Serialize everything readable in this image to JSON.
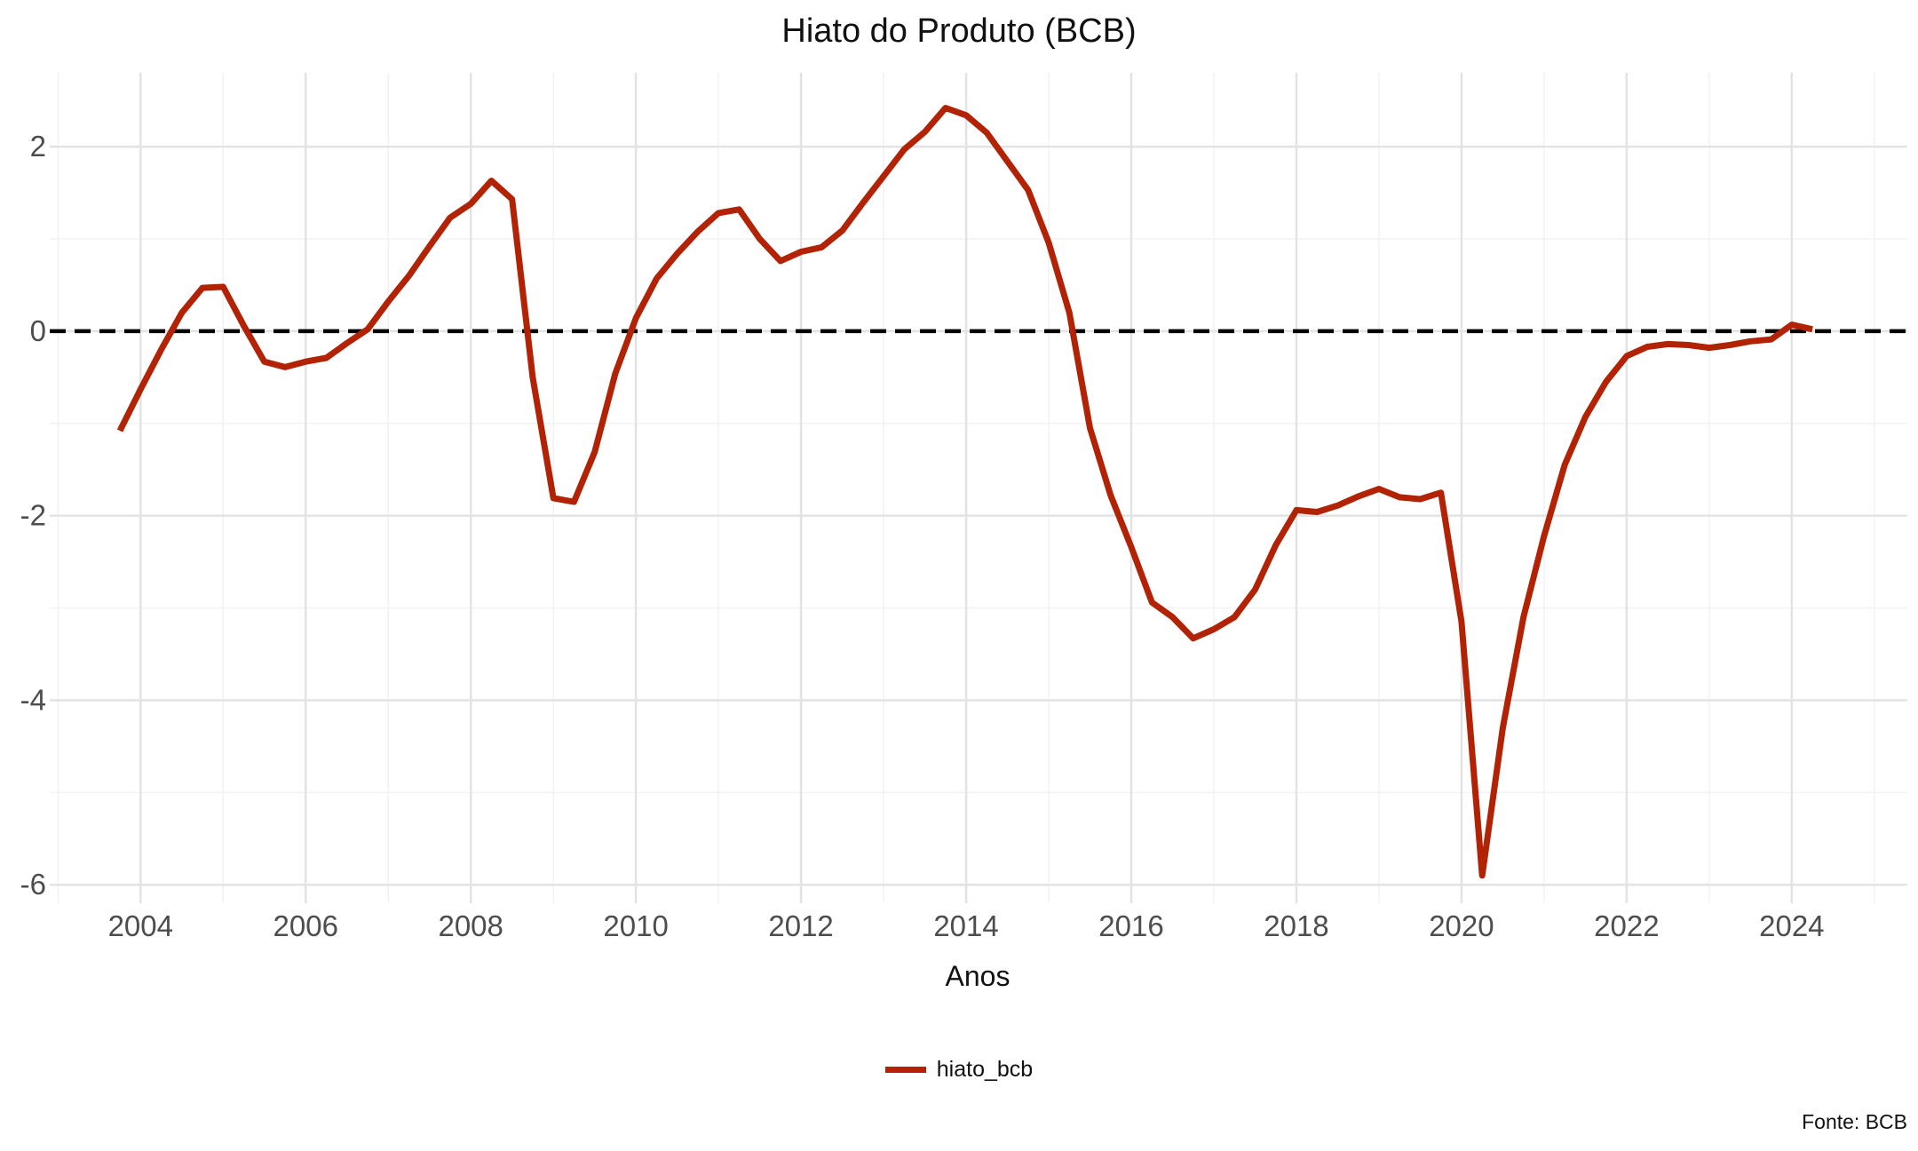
{
  "chart_data": {
    "type": "line",
    "title": "Hiato do Produto (BCB)",
    "xlabel": "Anos",
    "ylabel": "",
    "caption": "Fonte: BCB",
    "xlim": [
      2002.9,
      2025.4
    ],
    "ylim": [
      -6.2,
      2.8
    ],
    "x_ticks": [
      2004,
      2006,
      2008,
      2010,
      2012,
      2014,
      2016,
      2018,
      2020,
      2022,
      2024
    ],
    "x_tick_labels": [
      "2004",
      "2006",
      "2008",
      "2010",
      "2012",
      "2014",
      "2016",
      "2018",
      "2020",
      "2022",
      "2024"
    ],
    "y_ticks": [
      -6,
      -4,
      -2,
      0,
      2
    ],
    "y_tick_labels": [
      "-6",
      "-4",
      "-2",
      "0",
      "2"
    ],
    "grid": true,
    "legend_position": "bottom",
    "reference_line": {
      "y": 0,
      "style": "dashed",
      "color": "#000000"
    },
    "series": [
      {
        "name": "hiato_bcb",
        "color": "#B22204",
        "x": [
          2003.75,
          2004.0,
          2004.25,
          2004.5,
          2004.75,
          2005.0,
          2005.25,
          2005.5,
          2005.75,
          2006.0,
          2006.25,
          2006.5,
          2006.75,
          2007.0,
          2007.25,
          2007.5,
          2007.75,
          2008.0,
          2008.25,
          2008.5,
          2008.75,
          2009.0,
          2009.25,
          2009.5,
          2009.75,
          2010.0,
          2010.25,
          2010.5,
          2010.75,
          2011.0,
          2011.25,
          2011.5,
          2011.75,
          2012.0,
          2012.25,
          2012.5,
          2012.75,
          2013.0,
          2013.25,
          2013.5,
          2013.75,
          2014.0,
          2014.25,
          2014.5,
          2014.75,
          2015.0,
          2015.25,
          2015.5,
          2015.75,
          2016.0,
          2016.25,
          2016.5,
          2016.75,
          2017.0,
          2017.25,
          2017.5,
          2017.75,
          2018.0,
          2018.25,
          2018.5,
          2018.75,
          2019.0,
          2019.25,
          2019.5,
          2019.75,
          2020.0,
          2020.25,
          2020.5,
          2020.75,
          2021.0,
          2021.25,
          2021.5,
          2021.75,
          2022.0,
          2022.25,
          2022.5,
          2022.75,
          2023.0,
          2023.25,
          2023.5,
          2023.75,
          2024.0,
          2024.25
        ],
        "y": [
          -1.08,
          -0.63,
          -0.2,
          0.2,
          0.47,
          0.48,
          0.06,
          -0.33,
          -0.39,
          -0.33,
          -0.29,
          -0.13,
          0.02,
          0.32,
          0.6,
          0.92,
          1.23,
          1.38,
          1.63,
          1.43,
          -0.5,
          -1.81,
          -1.85,
          -1.31,
          -0.46,
          0.14,
          0.57,
          0.84,
          1.08,
          1.28,
          1.32,
          1.0,
          0.76,
          0.86,
          0.91,
          1.09,
          1.39,
          1.68,
          1.97,
          2.16,
          2.42,
          2.34,
          2.15,
          1.84,
          1.53,
          0.96,
          0.2,
          -1.05,
          -1.78,
          -2.34,
          -2.94,
          -3.1,
          -3.33,
          -3.23,
          -3.1,
          -2.8,
          -2.32,
          -1.94,
          -1.96,
          -1.89,
          -1.79,
          -1.71,
          -1.8,
          -1.82,
          -1.75,
          -3.15,
          -5.9,
          -4.3,
          -3.1,
          -2.22,
          -1.45,
          -0.93,
          -0.55,
          -0.27,
          -0.17,
          -0.14,
          -0.15,
          -0.18,
          -0.15,
          -0.11,
          -0.09,
          0.07,
          0.02
        ]
      }
    ]
  }
}
